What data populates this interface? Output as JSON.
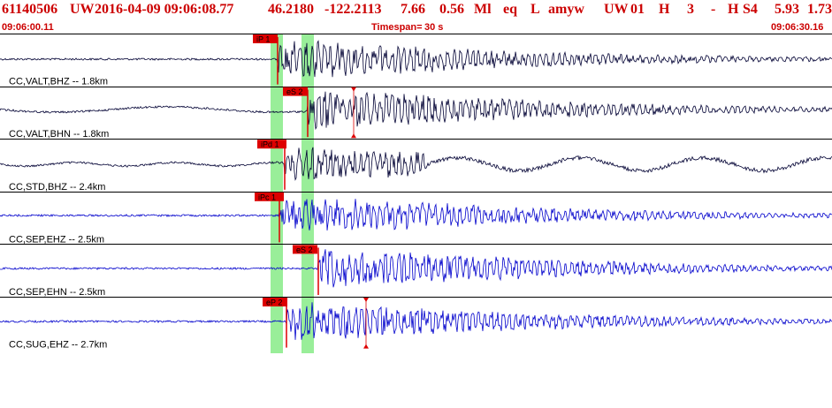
{
  "header": {
    "event_id": "61140506",
    "network": "UW",
    "datetime": "2016-04-09 09:06:08.77",
    "lat": "46.2180",
    "lon": "-122.2113",
    "depth": "7.66",
    "magnitude": "0.56",
    "mag_type": "Ml",
    "event_type": "eq",
    "location_flag": "L",
    "analyst": "amyw",
    "network2": "UW",
    "version": "01",
    "h1": "H",
    "num": "3",
    "dash": "-",
    "h2": "H",
    "s4": "S4",
    "val1": "5.93",
    "val2": "1.73"
  },
  "time_row": {
    "start": "09:06:00.11",
    "timespan_label": "Timespan=",
    "timespan_value": "30 s",
    "end": "09:06:30.16"
  },
  "colors": {
    "header_text": "#cc0000",
    "green_window": "#99ee99",
    "trace_dark": "#000033",
    "trace_blue": "#0000cc",
    "pick_red": "#dd0000",
    "divider": "#000000"
  },
  "traces": [
    {
      "label": "CC,VALT,BHZ -- 1.8km",
      "color": "dark",
      "phase": "iP 1",
      "amp": 1.0
    },
    {
      "label": "CC,VALT,BHN -- 1.8km",
      "color": "dark",
      "phase": "eS 2",
      "amp": 1.0
    },
    {
      "label": "CC,STD,BHZ -- 2.4km",
      "color": "dark",
      "phase": "iPd 1",
      "amp": 0.9
    },
    {
      "label": "CC,SEP,EHZ -- 2.5km",
      "color": "blue",
      "phase": "iPc 1",
      "amp": 1.0
    },
    {
      "label": "CC,SEP,EHN -- 2.5km",
      "color": "blue",
      "phase": "eS 2",
      "amp": 1.0
    },
    {
      "label": "CC,SUG,EHZ -- 2.7km",
      "color": "blue",
      "phase": "eP 2",
      "amp": 1.0
    }
  ]
}
